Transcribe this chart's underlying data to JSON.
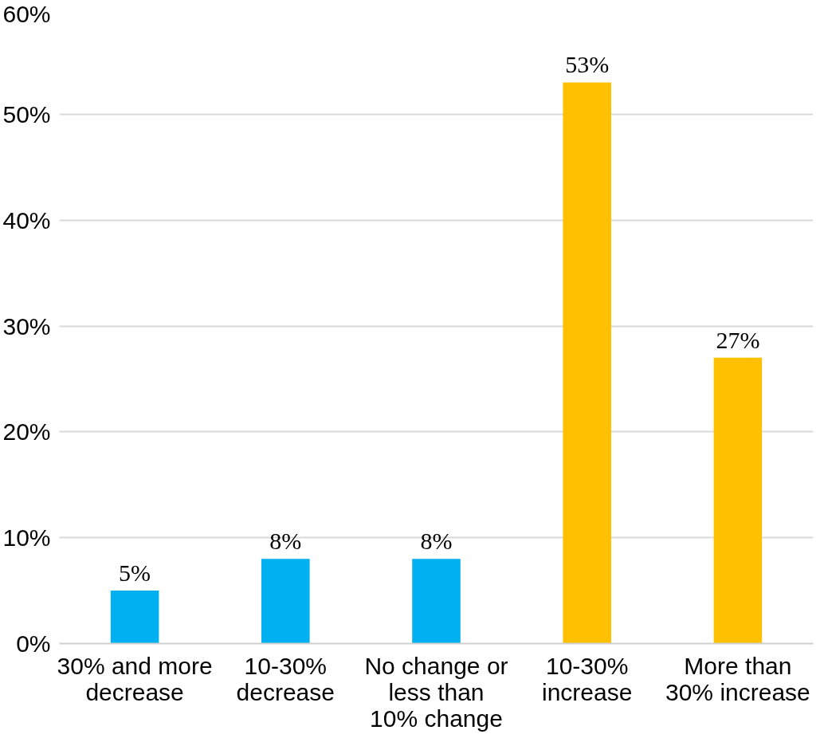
{
  "chart_data": {
    "type": "bar",
    "categories": [
      "30% and more decrease",
      "10-30% decrease",
      "No change or less than 10% change",
      "10-30% increase",
      "More than 30% increase"
    ],
    "values": [
      5,
      8,
      8,
      53,
      27
    ],
    "colors": [
      "#00b0f0",
      "#00b0f0",
      "#00b0f0",
      "#ffc000",
      "#ffc000"
    ],
    "ylim": [
      0,
      60
    ],
    "yticks": [
      {
        "value": 0,
        "label": "0%"
      },
      {
        "value": 10,
        "label": "10%"
      },
      {
        "value": 20,
        "label": "20%"
      },
      {
        "value": 30,
        "label": "30%"
      },
      {
        "value": 40,
        "label": "40%"
      },
      {
        "value": 50,
        "label": "50%"
      },
      {
        "value": 60,
        "label": "60%"
      }
    ],
    "value_labels": [
      "5%",
      "8%",
      "8%",
      "53%",
      "27%"
    ],
    "grid": "y"
  }
}
